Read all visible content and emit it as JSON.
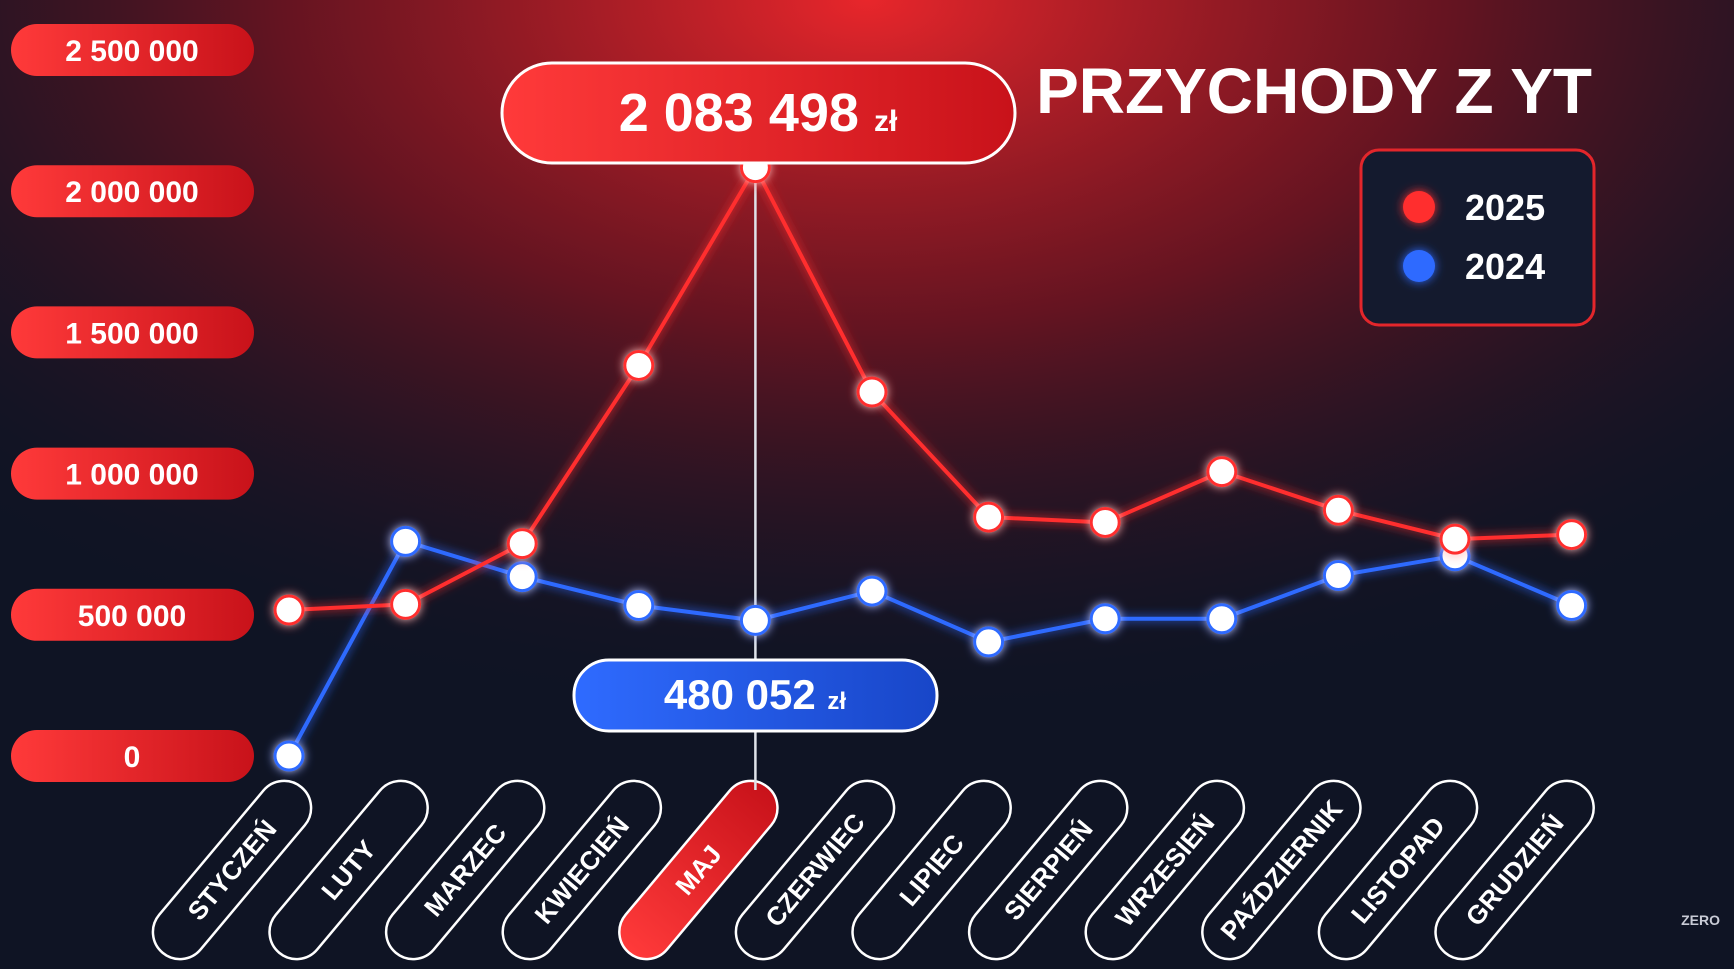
{
  "chart_data": {
    "type": "line",
    "title": "PRZYCHODY Z YT",
    "categories": [
      "STYCZEŃ",
      "LUTY",
      "MARZEC",
      "KWIECIEŃ",
      "MAJ",
      "CZERWIEC",
      "LIPIEC",
      "SIERPIEŃ",
      "WRZESIEŃ",
      "PAŹDZIERNIK",
      "LISTOPAD",
      "GRUDZIEŃ"
    ],
    "highlighted_category": "MAJ",
    "ylim": [
      0,
      2500000
    ],
    "yticks": [
      0,
      500000,
      1000000,
      1500000,
      2000000,
      2500000
    ],
    "ytick_labels": [
      "0",
      "500 000",
      "1 000 000",
      "1 500 000",
      "2 000 000",
      "2 500 000"
    ],
    "series": [
      {
        "name": "2025",
        "color": "#ff2d2d",
        "values": [
          517000,
          537000,
          752000,
          1383000,
          2083498,
          1289000,
          846000,
          827000,
          1007000,
          870000,
          768000,
          784000
        ]
      },
      {
        "name": "2024",
        "color": "#2f6bff",
        "values": [
          0,
          760000,
          635000,
          533000,
          480052,
          584000,
          404000,
          486000,
          486000,
          639000,
          709000,
          533000
        ]
      }
    ],
    "legend_placement": "top-right",
    "callouts": [
      {
        "series": "2025",
        "label": "2 083 498",
        "unit": "zł"
      },
      {
        "series": "2024",
        "label": "480 052",
        "unit": "zł"
      }
    ]
  },
  "watermark": "ZERO"
}
